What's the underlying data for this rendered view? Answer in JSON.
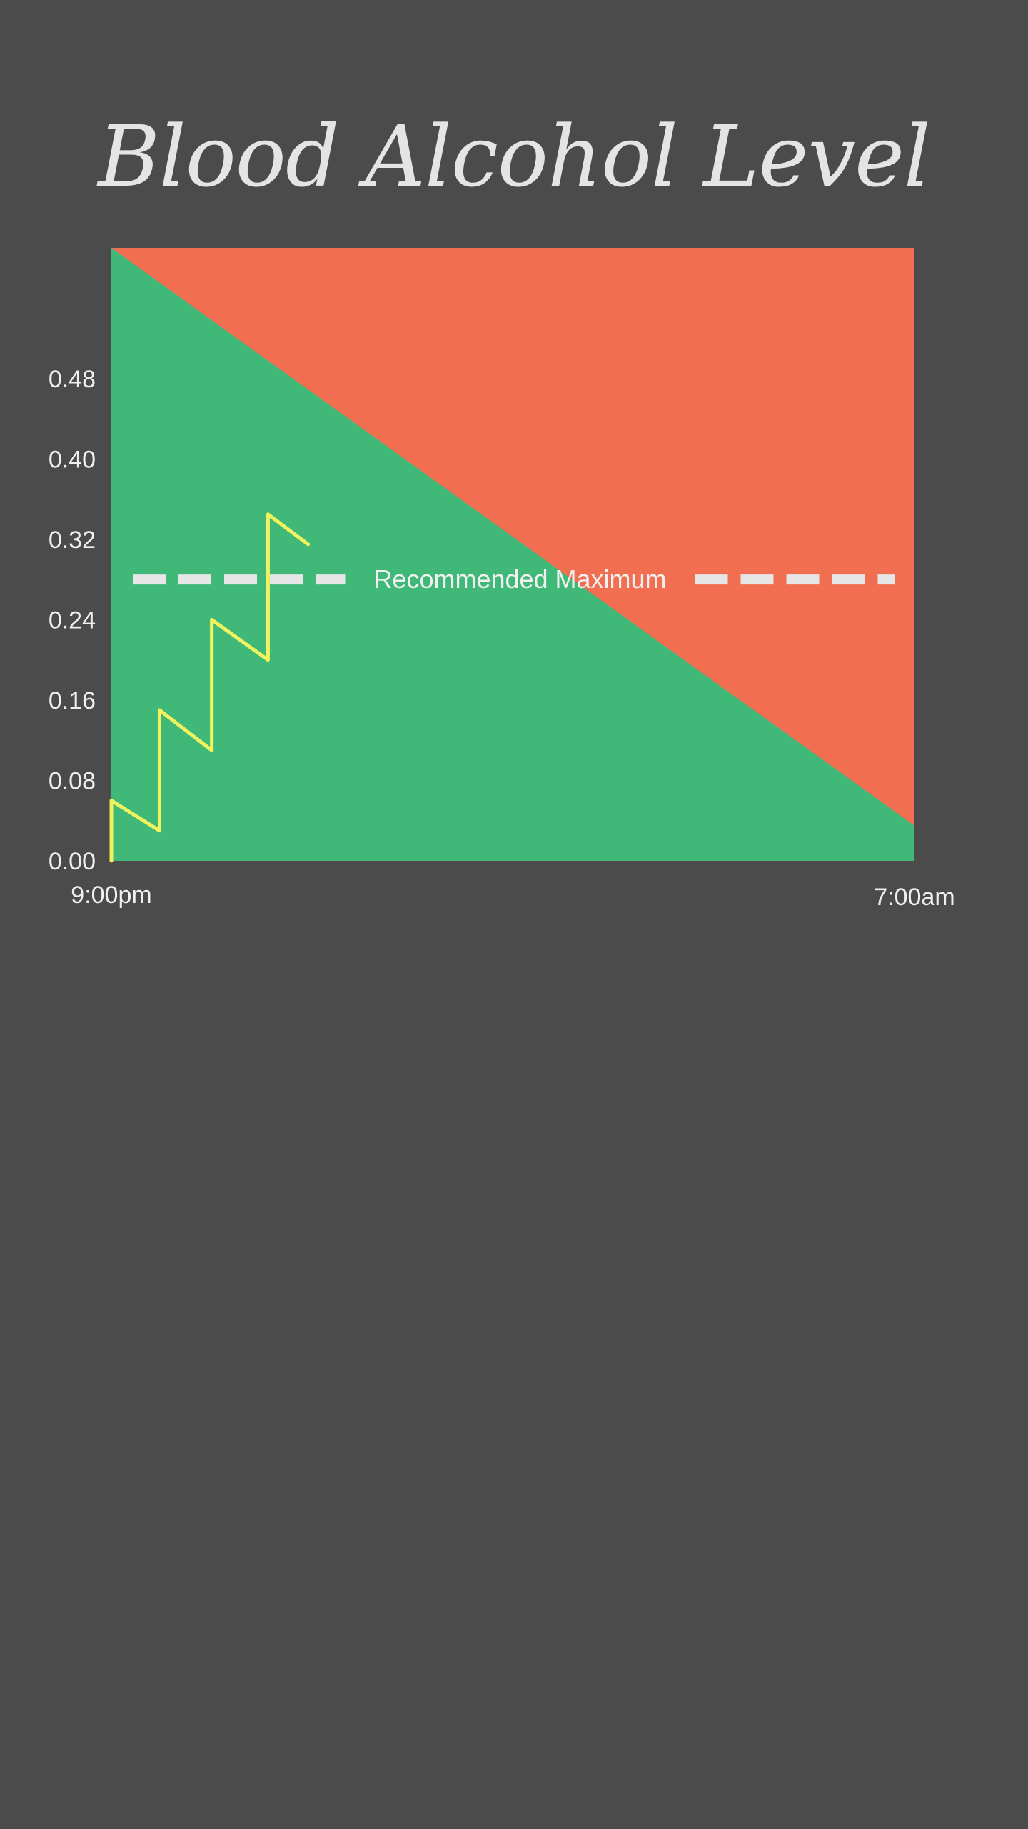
{
  "page": {
    "title": "Blood Alcohol Level"
  },
  "colors": {
    "background": "#4b4b4b",
    "safe_zone": "#3fb878",
    "danger_zone": "#f26e51",
    "line": "#f2f25e",
    "text": "#f0f0f0",
    "dash": "#e6e6e6"
  },
  "chart_data": {
    "type": "line",
    "title": "Blood Alcohol Level",
    "x_start_label": "9:00pm",
    "x_end_label": "7:00am",
    "x_start": "9:00pm",
    "x_end": "7:00am",
    "y_ticks": [
      0.0,
      0.08,
      0.16,
      0.24,
      0.32,
      0.4,
      0.48
    ],
    "y_tick_labels": [
      "0.00",
      "0.08",
      "0.16",
      "0.24",
      "0.32",
      "0.40",
      "0.48"
    ],
    "ylim": [
      0.0,
      0.61
    ],
    "reference_line": {
      "label": "Recommended Maximum",
      "value": 0.28,
      "style": "dashed"
    },
    "threshold_zone": {
      "safe_label": "",
      "boundary_start": 0.61,
      "boundary_end": 0.035
    },
    "series": [
      {
        "x": [
          "9:00pm",
          "9:00pm",
          "9:36pm",
          "9:36pm",
          "10:15pm",
          "10:15pm",
          "10:57pm",
          "10:57pm",
          "11:27pm"
        ],
        "values": [
          0.0,
          0.06,
          0.03,
          0.15,
          0.11,
          0.24,
          0.2,
          0.345,
          0.315
        ]
      }
    ],
    "grid": false
  }
}
